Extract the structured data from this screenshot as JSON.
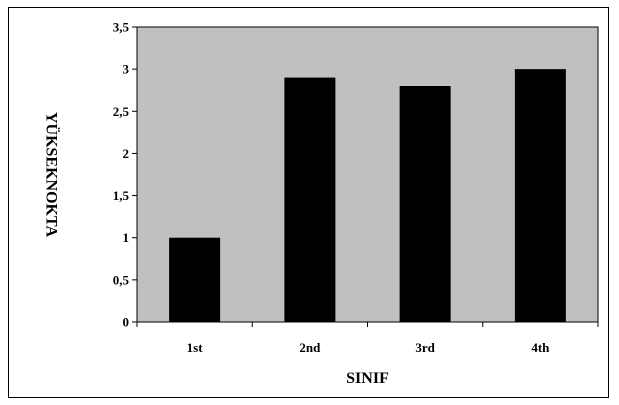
{
  "chart_data": {
    "type": "bar",
    "categories": [
      "1st",
      "2nd",
      "3rd",
      "4th"
    ],
    "values": [
      1,
      2.9,
      2.8,
      3
    ],
    "xlabel": "SINIF",
    "ylabel": "YÜKSEKNOKTA",
    "ylim": [
      0,
      3.5
    ],
    "yticks": [
      "0",
      "0,5",
      "1",
      "1,5",
      "2",
      "2,5",
      "3",
      "3,5"
    ],
    "grid": false,
    "legend": "none",
    "colors": {
      "plot_bg": "#c0c0c0",
      "bar": "#000000",
      "border": "#000000"
    }
  }
}
